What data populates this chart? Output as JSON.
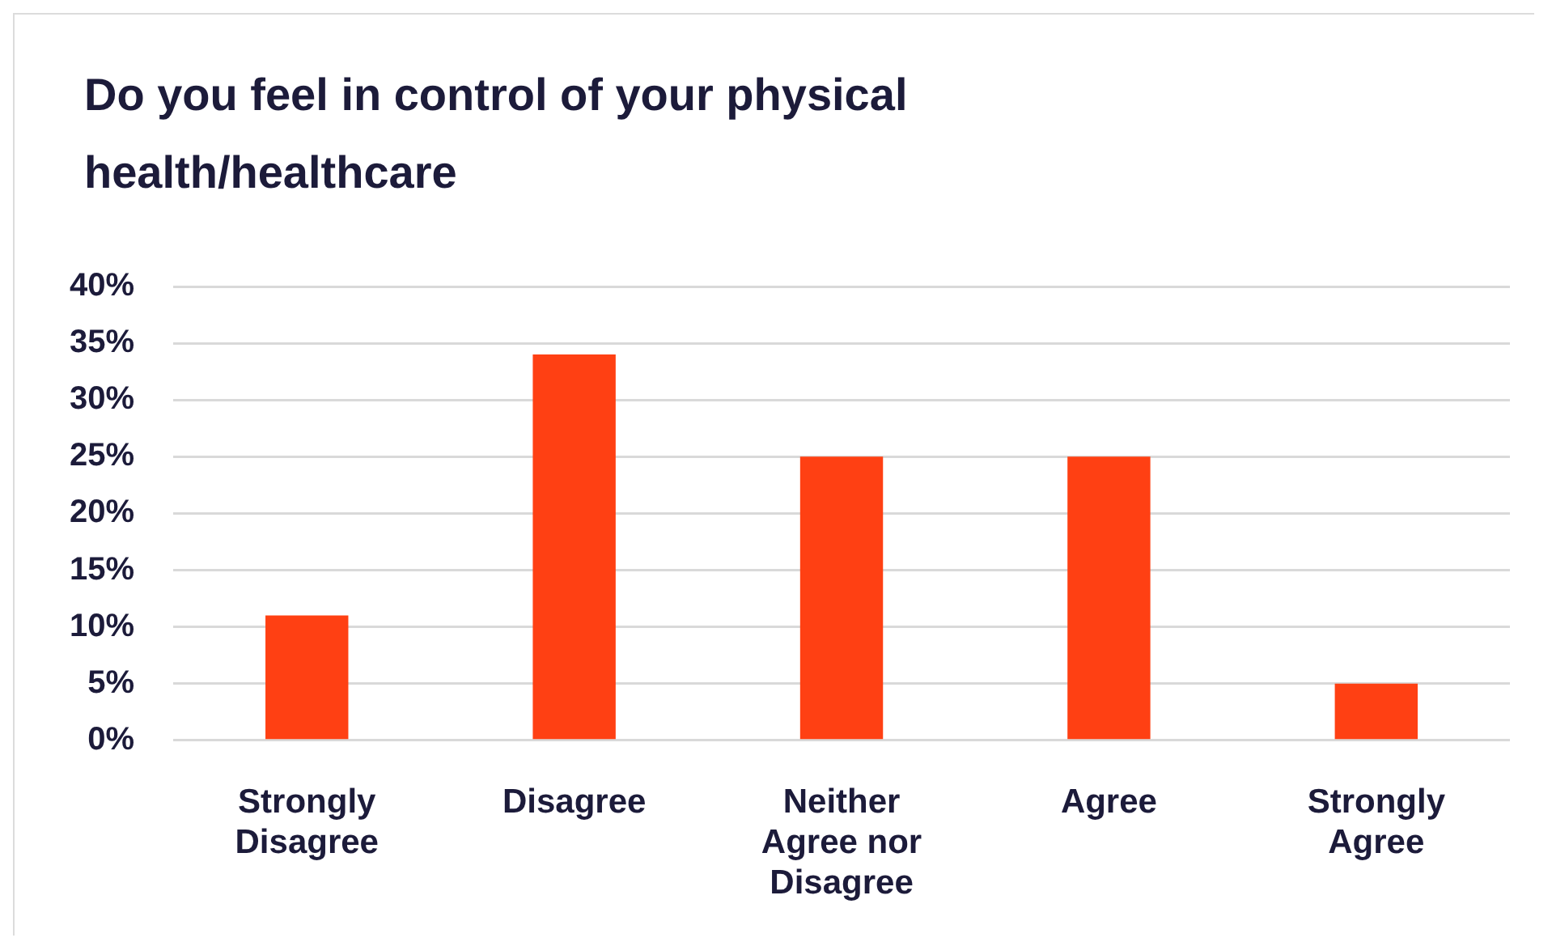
{
  "chart_data": {
    "type": "bar",
    "title": "Do you feel in control of your physical health/healthcare",
    "categories": [
      "Strongly Disagree",
      "Disagree",
      "Neither Agree nor Disagree",
      "Agree",
      "Strongly Agree"
    ],
    "values": [
      11,
      34,
      25,
      25,
      5
    ],
    "color": "#ff4013",
    "ylim": [
      0,
      40
    ],
    "yticks": [
      {
        "value": 0,
        "label": "0%"
      },
      {
        "value": 5,
        "label": "5%"
      },
      {
        "value": 10,
        "label": "10%"
      },
      {
        "value": 15,
        "label": "15%"
      },
      {
        "value": 20,
        "label": "20%"
      },
      {
        "value": 25,
        "label": "25%"
      },
      {
        "value": 30,
        "label": "30%"
      },
      {
        "value": 35,
        "label": "35%"
      },
      {
        "value": 40,
        "label": "40%"
      }
    ],
    "grid": "y",
    "legend": false
  }
}
